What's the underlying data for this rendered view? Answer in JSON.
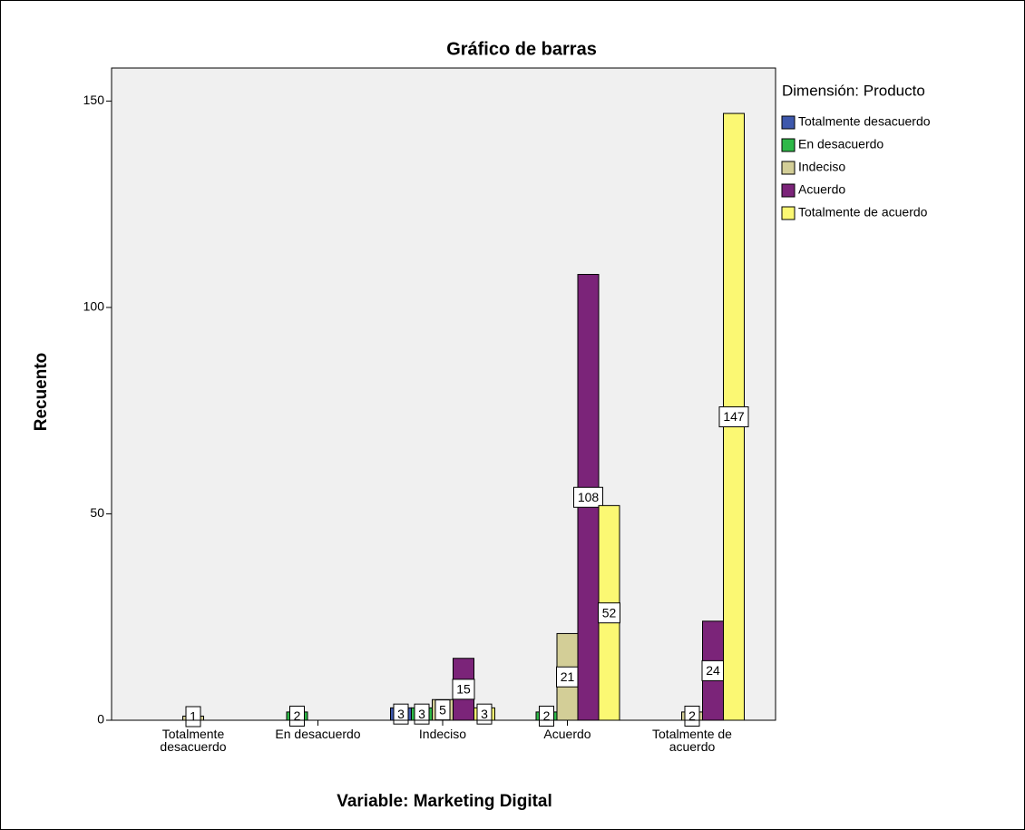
{
  "chart_data": {
    "type": "bar",
    "title": "Gráfico de barras",
    "x_label": "Variable: Marketing Digital",
    "y_label": "Recuento",
    "legend_title": "Dimensión: Producto",
    "legend_position": "right",
    "categories": [
      "Totalmente desacuerdo",
      "En desacuerdo",
      "Indeciso",
      "Acuerdo",
      "Totalmente de acuerdo"
    ],
    "series": [
      {
        "name": "Totalmente desacuerdo",
        "color": "#3e58ac",
        "values": [
          null,
          null,
          3,
          null,
          null
        ]
      },
      {
        "name": "En desacuerdo",
        "color": "#2eb848",
        "values": [
          null,
          2,
          3,
          2,
          null
        ]
      },
      {
        "name": "Indeciso",
        "color": "#d3ce97",
        "values": [
          1,
          null,
          5,
          21,
          2
        ]
      },
      {
        "name": "Acuerdo",
        "color": "#7b2479",
        "values": [
          null,
          null,
          15,
          108,
          24
        ]
      },
      {
        "name": "Totalmente de acuerdo",
        "color": "#fbf873",
        "values": [
          null,
          null,
          3,
          52,
          147
        ]
      }
    ],
    "ylim": [
      0,
      158
    ],
    "yticks": [
      0,
      50,
      100,
      150
    ]
  }
}
